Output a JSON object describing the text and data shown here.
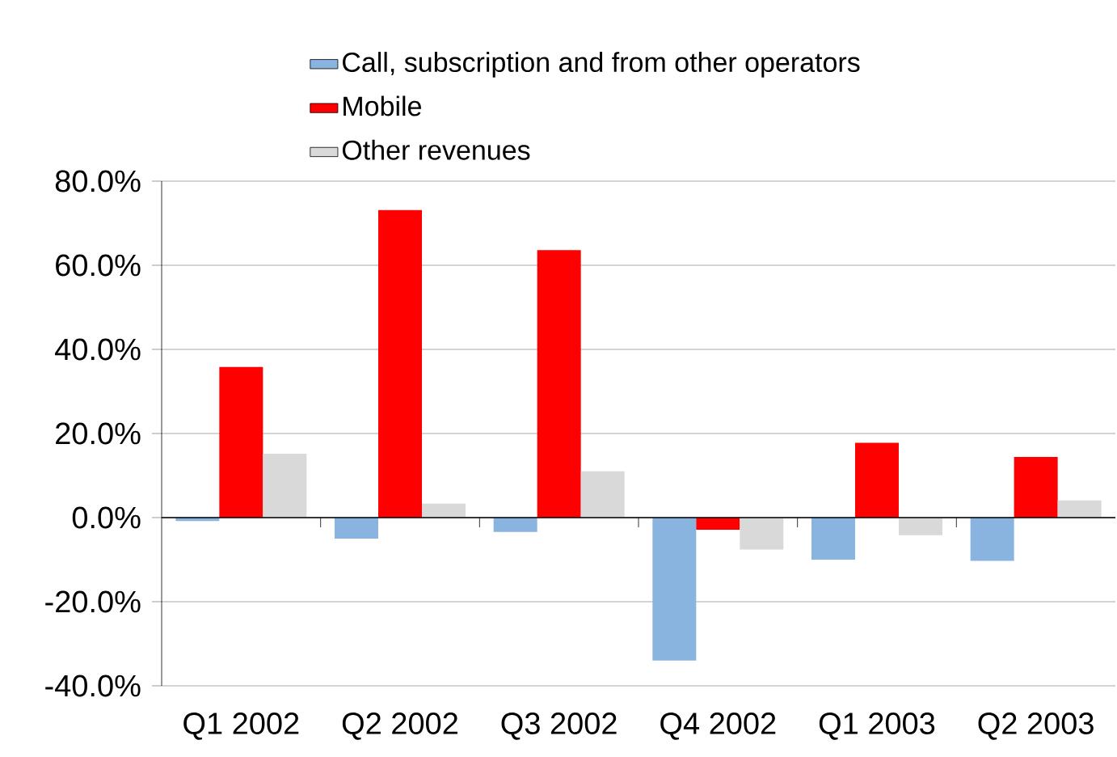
{
  "chart_data": {
    "type": "bar",
    "categories": [
      "Q1 2002",
      "Q2 2002",
      "Q3 2002",
      "Q4 2002",
      "Q1 2003",
      "Q2 2003"
    ],
    "series": [
      {
        "name": "Call, subscription and from other operators",
        "color": "#8ab4e0",
        "values": [
          -0.8,
          -5,
          -3.4,
          -34,
          -10,
          -10.3
        ]
      },
      {
        "name": "Mobile",
        "color": "#ff0000",
        "values": [
          35.8,
          73.1,
          63.6,
          -2.9,
          17.8,
          14.4
        ]
      },
      {
        "name": "Other revenues",
        "color": "#d9d9d9",
        "values": [
          15.2,
          3.3,
          11,
          -7.6,
          -4.2,
          4.1
        ]
      }
    ],
    "ylim": [
      -40,
      80
    ],
    "yticks": [
      {
        "value": -40,
        "label": "-40.0%"
      },
      {
        "value": -20,
        "label": "-20.0%"
      },
      {
        "value": 0,
        "label": "0.0%"
      },
      {
        "value": 20,
        "label": "20.0%"
      },
      {
        "value": 40,
        "label": "40.0%"
      },
      {
        "value": 60,
        "label": "60.0%"
      },
      {
        "value": 80,
        "label": "80.0%"
      }
    ],
    "grid": "y",
    "legend": "top"
  }
}
